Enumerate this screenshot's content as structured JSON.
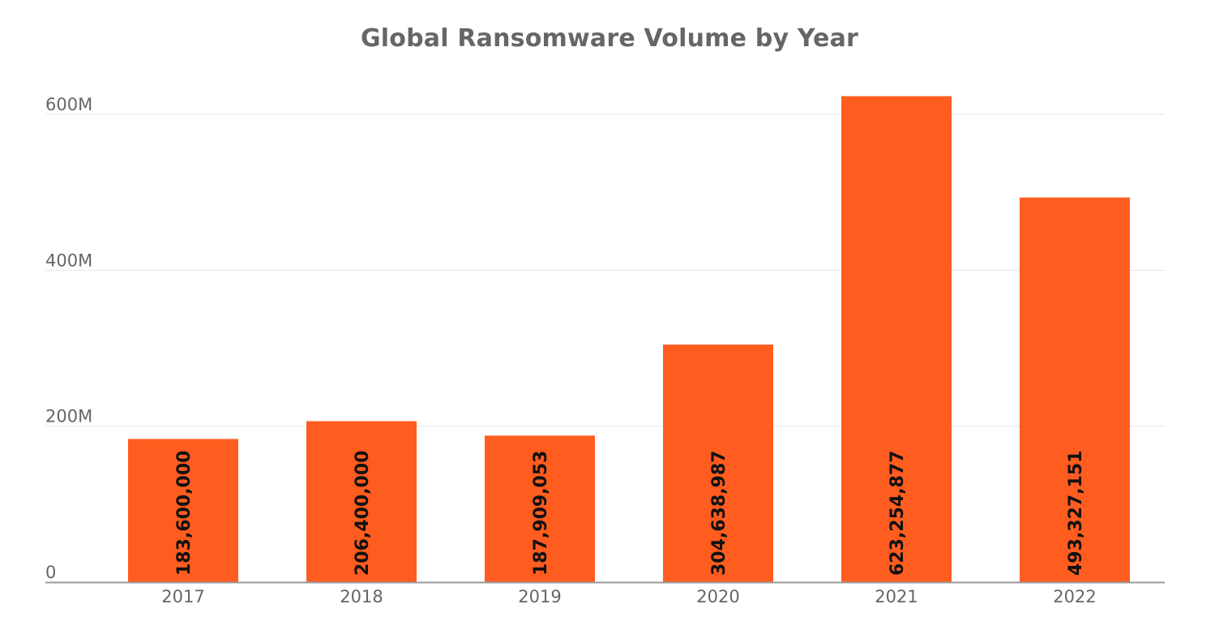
{
  "chart_data": {
    "type": "bar",
    "title": "Global Ransomware Volume by Year",
    "xlabel": "",
    "ylabel": "",
    "categories": [
      "2017",
      "2018",
      "2019",
      "2020",
      "2021",
      "2022"
    ],
    "values": [
      183600000,
      206400000,
      187909053,
      304638987,
      623254877,
      493327151
    ],
    "data_labels": [
      "183,600,000",
      "206,400,000",
      "187,909,053",
      "304,638,987",
      "623,254,877",
      "493,327,151"
    ],
    "ylim": [
      0,
      600000000
    ],
    "yticks": [
      {
        "value": 0,
        "label": "0"
      },
      {
        "value": 200000000,
        "label": "200M"
      },
      {
        "value": 400000000,
        "label": "400M"
      },
      {
        "value": 600000000,
        "label": "600M"
      }
    ],
    "grid": true,
    "legend": "none",
    "colors": {
      "bar": "#ff5c1f",
      "title": "#666666",
      "tick_label": "#666666",
      "data_label": "#111111",
      "grid": "#e6e6e6",
      "axis": "#999999"
    }
  }
}
